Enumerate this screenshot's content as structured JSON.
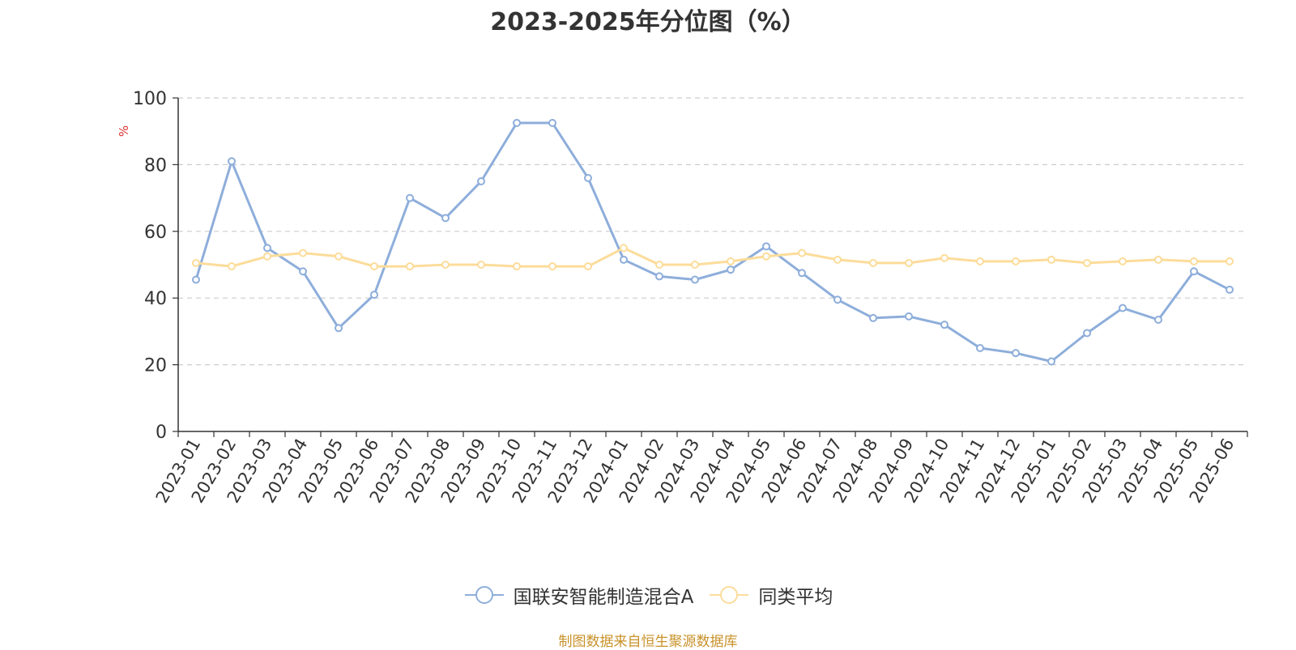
{
  "chart_data": {
    "type": "line",
    "title": "2023-2025年分位图（%）",
    "ylabel": "%",
    "ylim": [
      0,
      100
    ],
    "yticks": [
      0,
      20,
      40,
      60,
      80,
      100
    ],
    "grid": true,
    "legend_position": "bottom",
    "categories": [
      "2023-01",
      "2023-02",
      "2023-03",
      "2023-04",
      "2023-05",
      "2023-06",
      "2023-07",
      "2023-08",
      "2023-09",
      "2023-10",
      "2023-11",
      "2023-12",
      "2024-01",
      "2024-02",
      "2024-03",
      "2024-04",
      "2024-05",
      "2024-06",
      "2024-07",
      "2024-08",
      "2024-09",
      "2024-10",
      "2024-11",
      "2024-12",
      "2025-01",
      "2025-02",
      "2025-03",
      "2025-04",
      "2025-05",
      "2025-06"
    ],
    "series": [
      {
        "name": "国联安智能制造混合A",
        "color": "#8eaedb",
        "values": [
          45.5,
          81,
          55,
          48,
          31,
          41,
          70,
          64,
          75,
          92.5,
          92.5,
          76,
          51.5,
          46.5,
          45.5,
          48.5,
          55.5,
          47.5,
          39.5,
          34,
          34.5,
          32,
          25,
          23.5,
          21,
          29.5,
          37,
          33.5,
          48,
          42.5
        ]
      },
      {
        "name": "同类平均",
        "color": "#fcdc9a",
        "values": [
          50.5,
          49.5,
          52.5,
          53.5,
          52.5,
          49.5,
          49.5,
          50,
          50,
          49.5,
          49.5,
          49.5,
          55,
          50,
          50,
          51,
          52.5,
          53.5,
          51.5,
          50.5,
          50.5,
          52,
          51,
          51,
          51.5,
          50.5,
          51,
          51.5,
          51,
          51
        ]
      }
    ]
  },
  "source_text": "制图数据来自恒生聚源数据库"
}
